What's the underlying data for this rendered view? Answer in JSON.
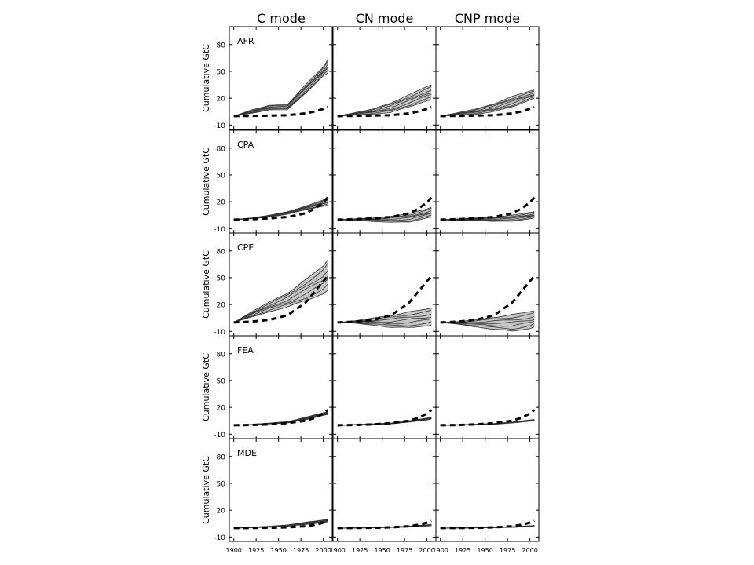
{
  "chart_data": {
    "type": "line",
    "columns": [
      "C mode",
      "CN mode",
      "CNP mode"
    ],
    "rows": [
      "AFR",
      "CPA",
      "CPE",
      "FEA",
      "MDE"
    ],
    "ylabel": "Cumulative GtC",
    "x_ticks": [
      1900,
      1925,
      1950,
      1975,
      2000
    ],
    "y_ticks": [
      -10,
      20,
      50,
      80
    ],
    "xlim": [
      1895,
      2010
    ],
    "ylim": [
      -15,
      100
    ],
    "series_style": {
      "observed": "thick black dashed line",
      "ensemble": "thin dark-gray lines with light-gray min-max shaded band"
    },
    "observed": {
      "x": [
        1900,
        1920,
        1940,
        1960,
        1980,
        1990,
        2000,
        2005
      ],
      "AFR": [
        0,
        0.2,
        0.5,
        1,
        3,
        5,
        8,
        10
      ],
      "CPA": [
        0,
        0.5,
        1.5,
        3,
        7,
        12,
        19,
        25
      ],
      "CPE": [
        0,
        1,
        3,
        8,
        22,
        34,
        46,
        52
      ],
      "FEA": [
        0,
        0.3,
        1,
        2.5,
        5,
        8,
        13,
        17
      ],
      "MDE": [
        0,
        0.1,
        0.3,
        0.8,
        2,
        3.5,
        6,
        8
      ]
    },
    "ensemble": {
      "x": [
        1900,
        1920,
        1940,
        1960,
        1980,
        2000,
        2005
      ],
      "C mode": {
        "AFR": {
          "low": [
            0,
            3,
            7,
            7,
            25,
            45,
            48
          ],
          "high": [
            0,
            7,
            12,
            13,
            35,
            55,
            63
          ]
        },
        "CPA": {
          "low": [
            0,
            1,
            3,
            6,
            11,
            15,
            16
          ],
          "high": [
            0,
            2,
            5,
            9,
            15,
            22,
            25
          ]
        },
        "CPE": {
          "low": [
            0,
            6,
            12,
            17,
            24,
            32,
            36
          ],
          "high": [
            0,
            12,
            23,
            33,
            48,
            63,
            70
          ]
        },
        "FEA": {
          "low": [
            0,
            0.5,
            1.5,
            2.5,
            6,
            11,
            12
          ],
          "high": [
            0,
            1,
            2.5,
            4,
            9,
            14,
            15
          ]
        },
        "MDE": {
          "low": [
            0,
            0.3,
            1,
            2,
            4,
            6,
            7
          ],
          "high": [
            0,
            1,
            2,
            3.5,
            6.5,
            9,
            10
          ]
        }
      },
      "CN mode": {
        "AFR": {
          "low": [
            0,
            1,
            2,
            4,
            10,
            17,
            18
          ],
          "high": [
            0,
            4,
            8,
            15,
            24,
            33,
            35
          ]
        },
        "CPA": {
          "low": [
            0,
            -1,
            -2,
            -3,
            -3,
            2,
            3
          ],
          "high": [
            0,
            1,
            2,
            4,
            7,
            12,
            14
          ]
        },
        "CPE": {
          "low": [
            0,
            -1,
            -3,
            -6,
            -6,
            -4,
            -3
          ],
          "high": [
            0,
            2,
            5,
            8,
            12,
            15,
            16
          ]
        },
        "FEA": {
          "low": [
            0,
            0.3,
            0.8,
            1.5,
            3.5,
            6,
            7
          ],
          "high": [
            0,
            0.8,
            1.6,
            2.5,
            5,
            8,
            9
          ]
        },
        "MDE": {
          "low": [
            0,
            0,
            0.3,
            0.6,
            1.2,
            2.2,
            2.6
          ],
          "high": [
            0,
            0.2,
            0.6,
            1.2,
            2.2,
            3.6,
            4
          ]
        }
      },
      "CNP mode": {
        "AFR": {
          "low": [
            0,
            1,
            2,
            5,
            10,
            18,
            20
          ],
          "high": [
            0,
            4,
            8,
            14,
            22,
            28,
            29
          ]
        },
        "CPA": {
          "low": [
            0,
            -1,
            -1,
            -2,
            -2,
            1,
            2
          ],
          "high": [
            0,
            1,
            2,
            3,
            5,
            8,
            9
          ]
        },
        "CPE": {
          "low": [
            0,
            -2,
            -5,
            -8,
            -10,
            -7,
            -5
          ],
          "high": [
            0,
            1,
            3,
            6,
            9,
            12,
            13
          ]
        },
        "FEA": {
          "low": [
            0,
            0.2,
            0.5,
            1,
            2.5,
            4.5,
            5
          ],
          "high": [
            0,
            0.6,
            1.2,
            2,
            3.5,
            6,
            6.5
          ]
        },
        "MDE": {
          "low": [
            0,
            0,
            0.2,
            0.4,
            0.8,
            1.6,
            1.8
          ],
          "high": [
            0,
            0.2,
            0.5,
            0.9,
            1.6,
            2.6,
            3
          ]
        }
      }
    }
  }
}
